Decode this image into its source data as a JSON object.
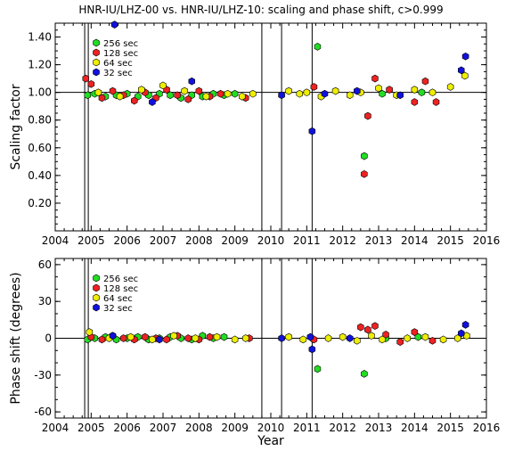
{
  "title": "HNR-IU/LHZ-00 vs. HNR-IU/LHZ-10: scaling and phase shift, c>0.999",
  "colors": {
    "256 sec": "#22dd22",
    "128 sec": "#ee2222",
    "64 sec": "#eeee00",
    "32 sec": "#1111dd"
  },
  "chart_data": [
    {
      "type": "scatter",
      "title": "HNR-IU/LHZ-00 vs. HNR-IU/LHZ-10: scaling and phase shift, c>0.999",
      "xlabel": "",
      "ylabel": "Scaling factor",
      "xlim": [
        2004,
        2016
      ],
      "ylim": [
        0.0,
        1.5
      ],
      "x_ticks": [
        "2004",
        "2005",
        "2006",
        "2007",
        "2008",
        "2009",
        "2010",
        "2011",
        "2012",
        "2013",
        "2014",
        "2015",
        "2016"
      ],
      "y_ticks": [
        "0.20",
        "0.40",
        "0.60",
        "0.80",
        "1.00",
        "1.20",
        "1.40"
      ],
      "reference_line": 1.0,
      "vertical_lines": [
        2004.82,
        2004.92,
        2009.75,
        2010.3,
        2011.15
      ],
      "legend": [
        "256 sec",
        "128 sec",
        " 64 sec",
        " 32 sec"
      ],
      "legend_placement": "top-left",
      "series": [
        {
          "name": "256 sec",
          "x": [
            2004.9,
            2005.1,
            2005.4,
            2005.7,
            2006.0,
            2006.3,
            2006.6,
            2006.9,
            2007.2,
            2007.5,
            2007.8,
            2008.1,
            2008.4,
            2008.7,
            2009.0,
            2011.3,
            2012.6,
            2013.1,
            2014.2
          ],
          "y": [
            0.98,
            0.99,
            0.97,
            0.98,
            0.99,
            0.97,
            0.98,
            0.99,
            0.98,
            0.96,
            0.98,
            0.97,
            0.99,
            0.98,
            0.99,
            1.33,
            0.54,
            0.99,
            1.0
          ]
        },
        {
          "name": "128 sec",
          "x": [
            2004.85,
            2005.0,
            2005.3,
            2005.6,
            2005.9,
            2006.2,
            2006.5,
            2006.8,
            2007.1,
            2007.4,
            2007.7,
            2008.0,
            2008.3,
            2008.6,
            2009.3,
            2011.2,
            2012.6,
            2012.7,
            2012.9,
            2013.3,
            2014.0,
            2014.3,
            2014.6
          ],
          "y": [
            1.1,
            1.06,
            0.96,
            1.01,
            0.98,
            0.94,
            1.0,
            0.96,
            1.02,
            0.98,
            0.95,
            1.01,
            0.97,
            0.99,
            0.96,
            1.04,
            0.41,
            0.83,
            1.1,
            1.02,
            0.93,
            1.08,
            0.93
          ]
        },
        {
          "name": " 64 sec",
          "x": [
            2005.2,
            2005.8,
            2006.4,
            2007.0,
            2007.6,
            2008.2,
            2008.8,
            2009.2,
            2009.5,
            2010.5,
            2010.8,
            2011.0,
            2011.4,
            2011.8,
            2012.2,
            2012.5,
            2013.0,
            2013.5,
            2014.0,
            2014.5,
            2015.0,
            2015.4
          ],
          "y": [
            1.0,
            0.97,
            1.02,
            1.05,
            1.01,
            0.97,
            0.99,
            0.97,
            0.99,
            1.01,
            0.99,
            1.0,
            0.97,
            1.01,
            0.98,
            1.0,
            1.03,
            0.98,
            1.02,
            1.0,
            1.04,
            1.12
          ]
        },
        {
          "name": " 32 sec",
          "x": [
            2005.65,
            2006.7,
            2007.8,
            2010.3,
            2011.15,
            2011.5,
            2012.4,
            2013.6,
            2015.3,
            2015.42
          ],
          "y": [
            1.49,
            0.93,
            1.08,
            0.98,
            0.72,
            0.99,
            1.01,
            0.98,
            1.16,
            1.26
          ]
        }
      ]
    },
    {
      "type": "scatter",
      "xlabel": "Year",
      "ylabel": "Phase shift (degrees)",
      "xlim": [
        2004,
        2016
      ],
      "ylim": [
        -65,
        65
      ],
      "x_ticks": [
        "2004",
        "2005",
        "2006",
        "2007",
        "2008",
        "2009",
        "2010",
        "2011",
        "2012",
        "2013",
        "2014",
        "2015",
        "2016"
      ],
      "y_ticks": [
        "-60",
        "-30",
        "0",
        "30",
        "60"
      ],
      "y_tick_values": [
        -60,
        -30,
        0,
        30,
        60
      ],
      "reference_line": 0,
      "vertical_lines": [
        2004.82,
        2004.92,
        2009.75,
        2010.3,
        2011.15
      ],
      "legend": [
        "256 sec",
        "128 sec",
        " 64 sec",
        " 32 sec"
      ],
      "legend_placement": "top-left",
      "series": [
        {
          "name": "256 sec",
          "x": [
            2004.9,
            2005.1,
            2005.4,
            2005.7,
            2006.0,
            2006.3,
            2006.6,
            2006.9,
            2007.2,
            2007.5,
            2007.8,
            2008.1,
            2008.4,
            2008.7,
            2011.3,
            2012.6,
            2013.2,
            2014.1
          ],
          "y": [
            -1,
            0,
            1,
            -1,
            0,
            1,
            -1,
            0,
            1,
            0,
            -1,
            2,
            0,
            1,
            -25,
            -29,
            0,
            1
          ]
        },
        {
          "name": "128 sec",
          "x": [
            2005.0,
            2005.3,
            2005.6,
            2005.9,
            2006.2,
            2006.5,
            2006.8,
            2007.1,
            2007.4,
            2007.7,
            2008.0,
            2008.3,
            2009.4,
            2011.2,
            2012.5,
            2012.7,
            2012.9,
            2013.2,
            2013.6,
            2014.0,
            2014.5
          ],
          "y": [
            1,
            -1,
            2,
            0,
            -1,
            1,
            0,
            -1,
            2,
            0,
            -1,
            1,
            0,
            -1,
            9,
            7,
            10,
            3,
            -3,
            5,
            -2
          ]
        },
        {
          "name": " 64 sec",
          "x": [
            2004.95,
            2005.5,
            2006.1,
            2006.7,
            2007.3,
            2007.9,
            2008.5,
            2009.0,
            2009.3,
            2010.5,
            2010.9,
            2011.6,
            2012.0,
            2012.4,
            2012.8,
            2013.1,
            2013.8,
            2014.3,
            2014.8,
            2015.2,
            2015.45
          ],
          "y": [
            5,
            0,
            1,
            -1,
            2,
            0,
            1,
            -1,
            0,
            1,
            -1,
            0,
            1,
            -2,
            2,
            -1,
            0,
            1,
            -1,
            0,
            2
          ]
        },
        {
          "name": " 32 sec",
          "x": [
            2005.6,
            2006.9,
            2010.3,
            2011.1,
            2011.15,
            2012.2,
            2015.3,
            2015.42
          ],
          "y": [
            2,
            -1,
            0,
            1,
            -9,
            0,
            4,
            11
          ]
        }
      ]
    }
  ]
}
